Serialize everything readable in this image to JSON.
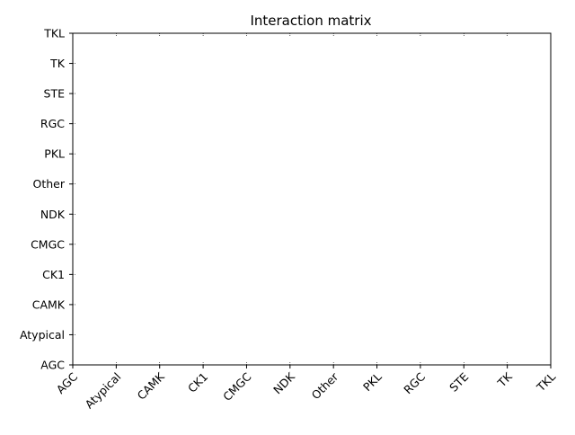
{
  "chart_data": {
    "type": "heatmap",
    "title": "Interaction matrix",
    "xlabel": "",
    "ylabel": "",
    "x_categories": [
      "AGC",
      "Atypical",
      "CAMK",
      "CK1",
      "CMGC",
      "NDK",
      "Other",
      "PKL",
      "RGC",
      "STE",
      "TK",
      "TKL"
    ],
    "y_categories": [
      "AGC",
      "Atypical",
      "CAMK",
      "CK1",
      "CMGC",
      "NDK",
      "Other",
      "PKL",
      "RGC",
      "STE",
      "TK",
      "TKL"
    ],
    "values": [],
    "grid": false,
    "colors": {
      "axes": "#000000",
      "background": "#ffffff"
    }
  }
}
